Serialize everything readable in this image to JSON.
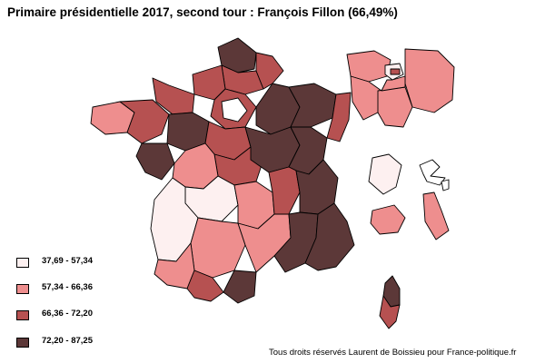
{
  "title": "Primaire présidentielle 2017, second tour : François Fillon (66,49%)",
  "colors": {
    "class1": "#fdf0f0",
    "class2": "#ee8e8e",
    "class3": "#b65151",
    "class4": "#5c3838",
    "stroke": "#000000"
  },
  "legend": [
    {
      "label": "37,69 - 57,34",
      "class": "class1"
    },
    {
      "label": "57,34 - 66,36",
      "class": "class2"
    },
    {
      "label": "66,36 - 72,20",
      "class": "class3"
    },
    {
      "label": "72,20 - 87,25",
      "class": "class4"
    }
  ],
  "credit": "Tous droits réservés Laurent de Boissieu pour France-politique.fr"
}
